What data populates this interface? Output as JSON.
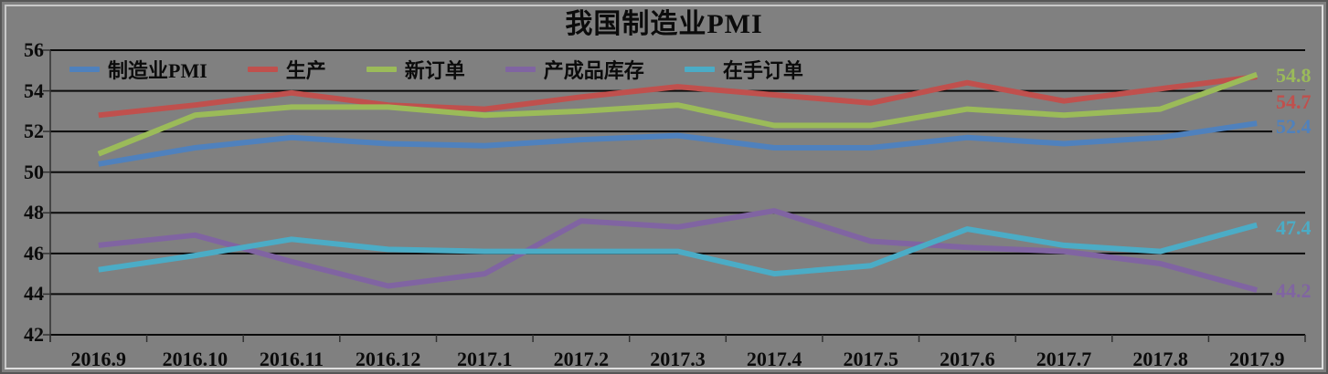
{
  "chart_data": {
    "type": "line",
    "title": "我国制造业PMI",
    "categories": [
      "2016.9",
      "2016.10",
      "2016.11",
      "2016.12",
      "2017.1",
      "2017.2",
      "2017.3",
      "2017.4",
      "2017.5",
      "2017.6",
      "2017.7",
      "2017.8",
      "2017.9"
    ],
    "series": [
      {
        "name": "制造业PMI",
        "color": "#4F81BD",
        "values": [
          50.4,
          51.2,
          51.7,
          51.4,
          51.3,
          51.6,
          51.8,
          51.2,
          51.2,
          51.7,
          51.4,
          51.7,
          52.4
        ]
      },
      {
        "name": "生产",
        "color": "#C0504D",
        "values": [
          52.8,
          53.3,
          53.9,
          53.3,
          53.1,
          53.7,
          54.2,
          53.8,
          53.4,
          54.4,
          53.5,
          54.1,
          54.7
        ]
      },
      {
        "name": "新订单",
        "color": "#9BBB59",
        "values": [
          50.9,
          52.8,
          53.2,
          53.2,
          52.8,
          53.0,
          53.3,
          52.3,
          52.3,
          53.1,
          52.8,
          53.1,
          54.8
        ]
      },
      {
        "name": "产成品库存",
        "color": "#8064A2",
        "values": [
          46.4,
          46.9,
          45.6,
          44.4,
          45.0,
          47.6,
          47.3,
          48.1,
          46.6,
          46.3,
          46.1,
          45.5,
          44.2
        ]
      },
      {
        "name": "在手订单",
        "color": "#4BACC6",
        "values": [
          45.2,
          45.9,
          46.7,
          46.2,
          46.1,
          46.1,
          46.1,
          45.0,
          45.4,
          47.2,
          46.4,
          46.1,
          47.4
        ]
      }
    ],
    "xlabel": "",
    "ylabel": "",
    "ylim": [
      42,
      56
    ],
    "y_ticks": [
      56,
      54,
      52,
      50,
      48,
      46,
      44,
      42
    ],
    "grid": "horizontal",
    "legend_position": "top-left",
    "end_labels": [
      {
        "text": "54.8",
        "series": "新订单",
        "color": "#9BBB59"
      },
      {
        "text": "54.7",
        "series": "生产",
        "color": "#C0504D"
      },
      {
        "text": "52.4",
        "series": "制造业PMI",
        "color": "#4F81BD"
      },
      {
        "text": "47.4",
        "series": "在手订单",
        "color": "#4BACC6"
      },
      {
        "text": "44.2",
        "series": "产成品库存",
        "color": "#8064A2"
      }
    ],
    "background": "#808080",
    "gridline_color": "#0a0a0a"
  }
}
